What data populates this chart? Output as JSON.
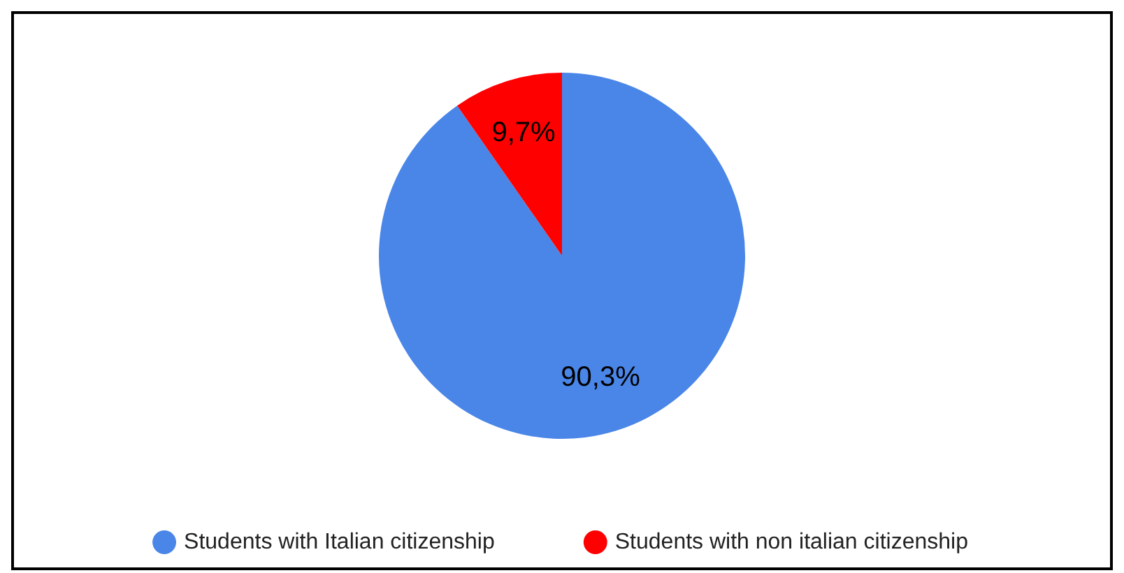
{
  "chart_data": {
    "type": "pie",
    "categories": [
      "Students with Italian citizenship",
      "Students with non italian citizenship"
    ],
    "values": [
      90.3,
      9.7
    ],
    "colors": [
      "#4a86e8",
      "#ff0000"
    ],
    "value_labels": [
      "90,3%",
      "9,7%"
    ],
    "legend": "bottom"
  }
}
